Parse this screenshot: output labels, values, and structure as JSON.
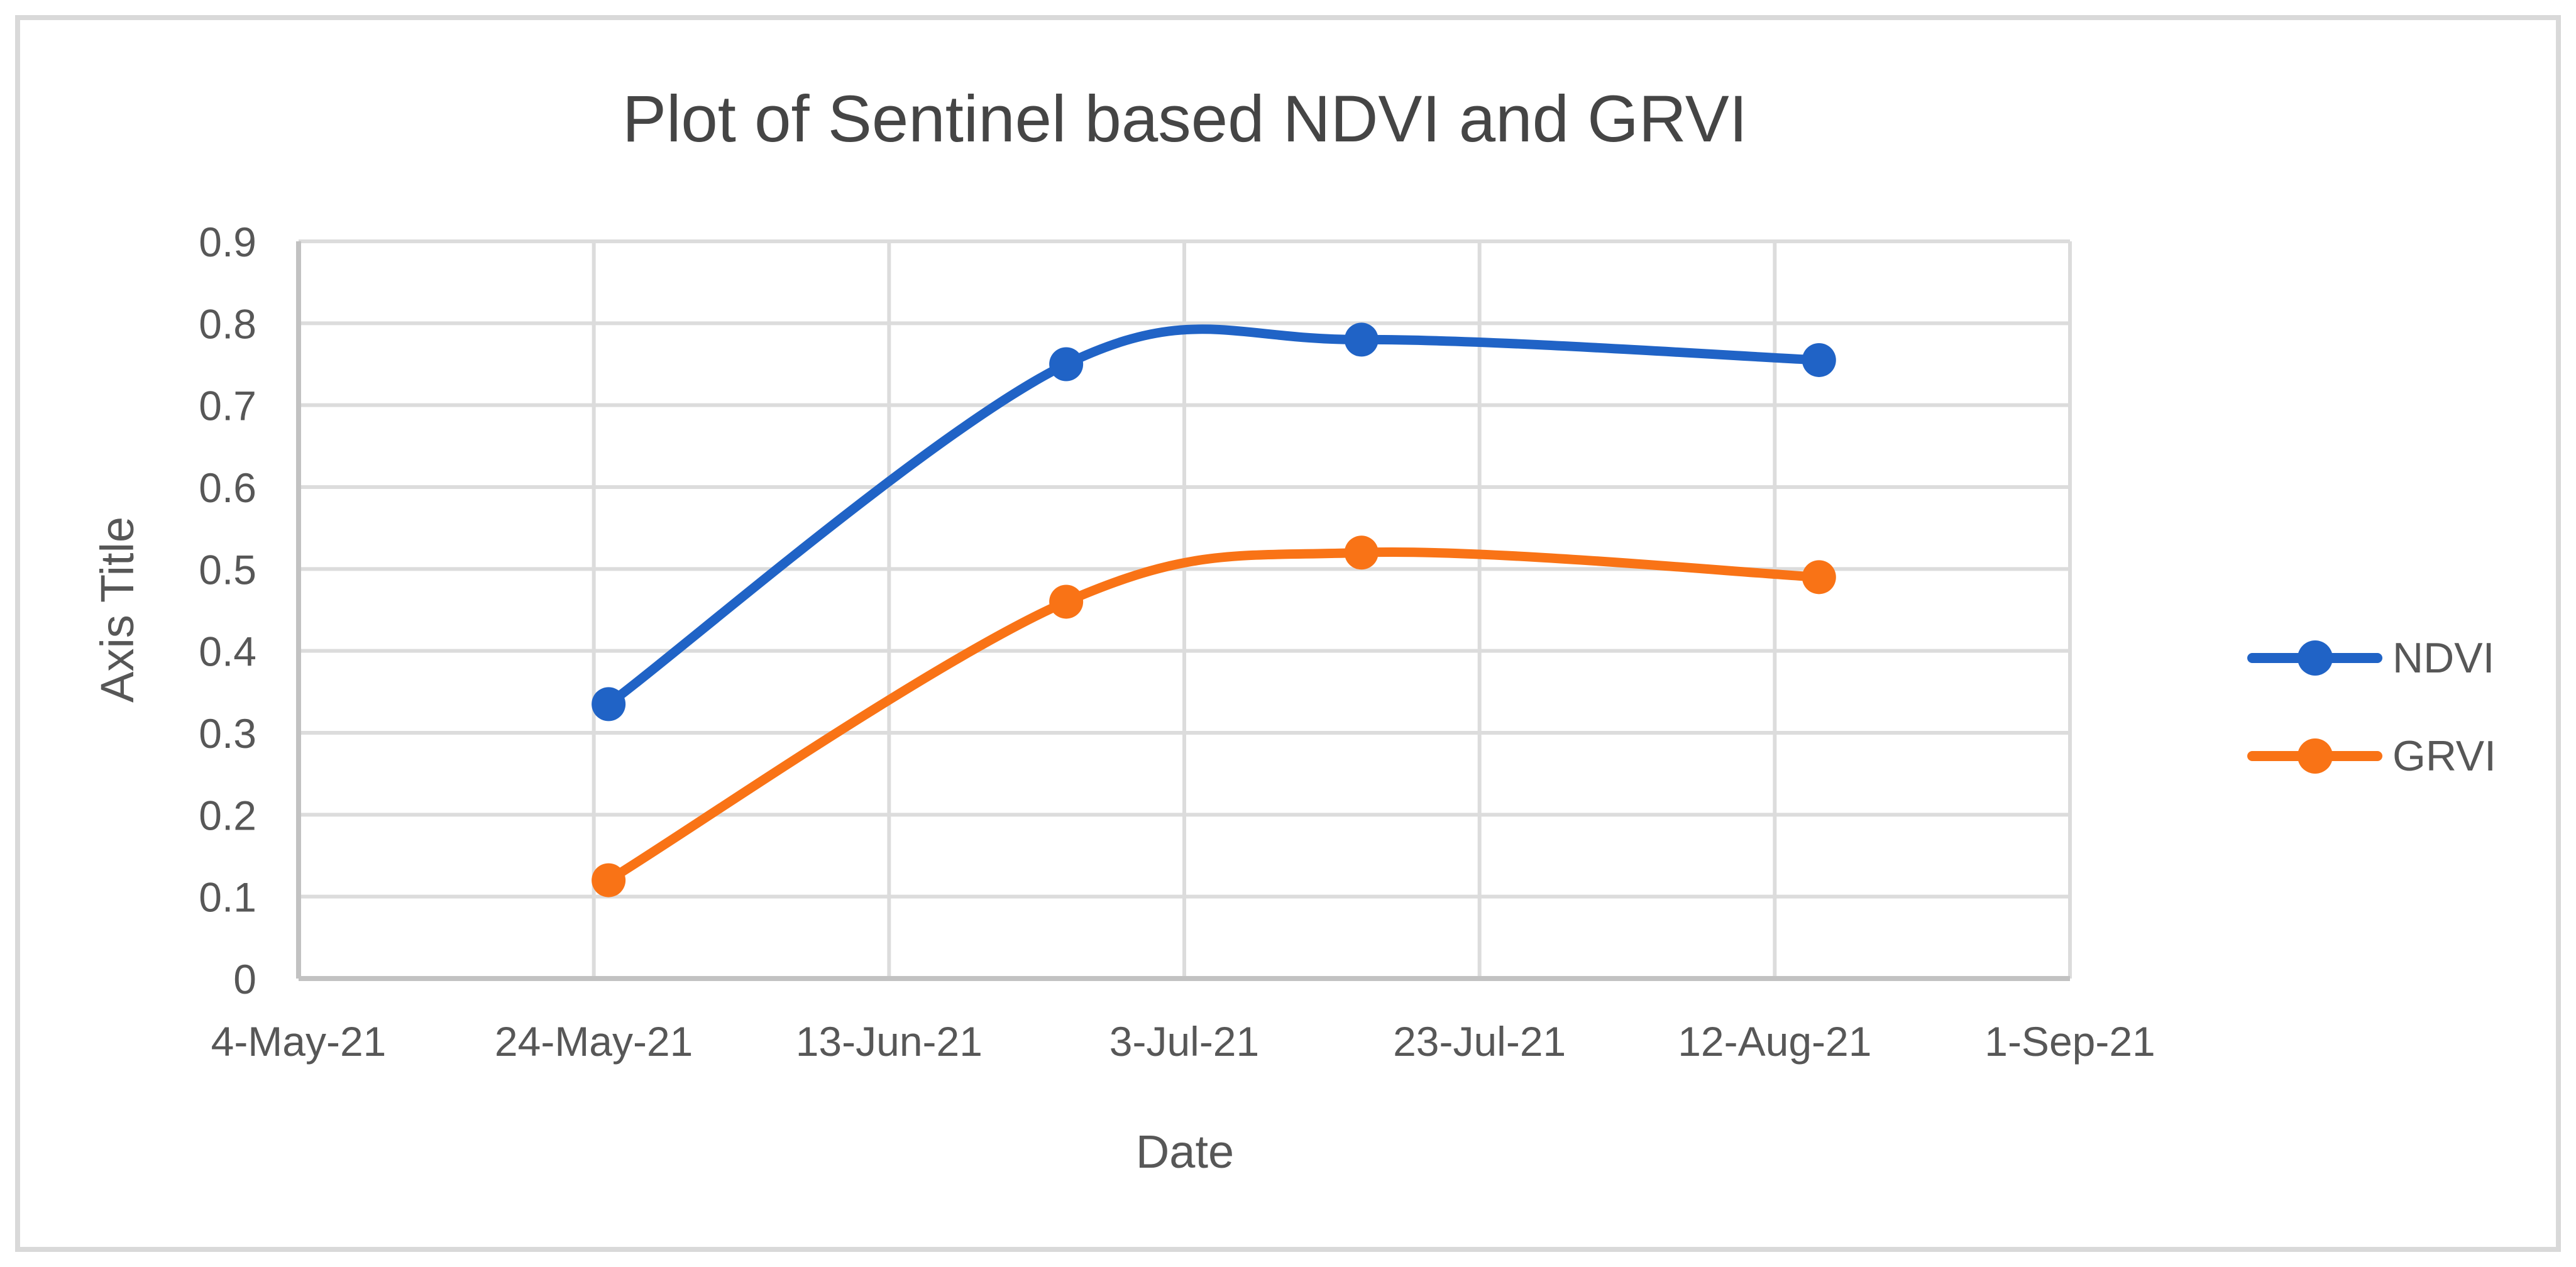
{
  "chart_data": {
    "type": "line",
    "title": "Plot of Sentinel based NDVI and GRVI",
    "smoothed_lines": true,
    "grid": true,
    "legend": {
      "position": "right"
    },
    "x_axis": {
      "title": "Date",
      "kind": "date",
      "ticks": [
        {
          "label": "4-May-21",
          "day": 0
        },
        {
          "label": "24-May-21",
          "day": 20
        },
        {
          "label": "13-Jun-21",
          "day": 40
        },
        {
          "label": "3-Jul-21",
          "day": 60
        },
        {
          "label": "23-Jul-21",
          "day": 80
        },
        {
          "label": "12-Aug-21",
          "day": 100
        },
        {
          "label": "1-Sep-21",
          "day": 120
        }
      ]
    },
    "y_axis": {
      "title": "Axis Title",
      "min": 0,
      "max": 0.9,
      "step": 0.1,
      "ticks": [
        {
          "label": "0",
          "value": 0
        },
        {
          "label": "0.1",
          "value": 0.1
        },
        {
          "label": "0.2",
          "value": 0.2
        },
        {
          "label": "0.3",
          "value": 0.3
        },
        {
          "label": "0.4",
          "value": 0.4
        },
        {
          "label": "0.5",
          "value": 0.5
        },
        {
          "label": "0.6",
          "value": 0.6
        },
        {
          "label": "0.7",
          "value": 0.7
        },
        {
          "label": "0.8",
          "value": 0.8
        },
        {
          "label": "0.9",
          "value": 0.9
        }
      ]
    },
    "series": [
      {
        "name": "NDVI",
        "color": "#2063c6",
        "marker": "circle",
        "points": [
          {
            "date": "25-May-21",
            "day": 21,
            "value": 0.335
          },
          {
            "date": "25-Jun-21",
            "day": 52,
            "value": 0.75
          },
          {
            "date": "15-Jul-21",
            "day": 72,
            "value": 0.78
          },
          {
            "date": "15-Aug-21",
            "day": 103,
            "value": 0.755
          }
        ]
      },
      {
        "name": "GRVI",
        "color": "#f97316",
        "marker": "circle",
        "points": [
          {
            "date": "25-May-21",
            "day": 21,
            "value": 0.12
          },
          {
            "date": "25-Jun-21",
            "day": 52,
            "value": 0.46
          },
          {
            "date": "15-Jul-21",
            "day": 72,
            "value": 0.52
          },
          {
            "date": "15-Aug-21",
            "day": 103,
            "value": 0.49
          }
        ]
      }
    ]
  }
}
